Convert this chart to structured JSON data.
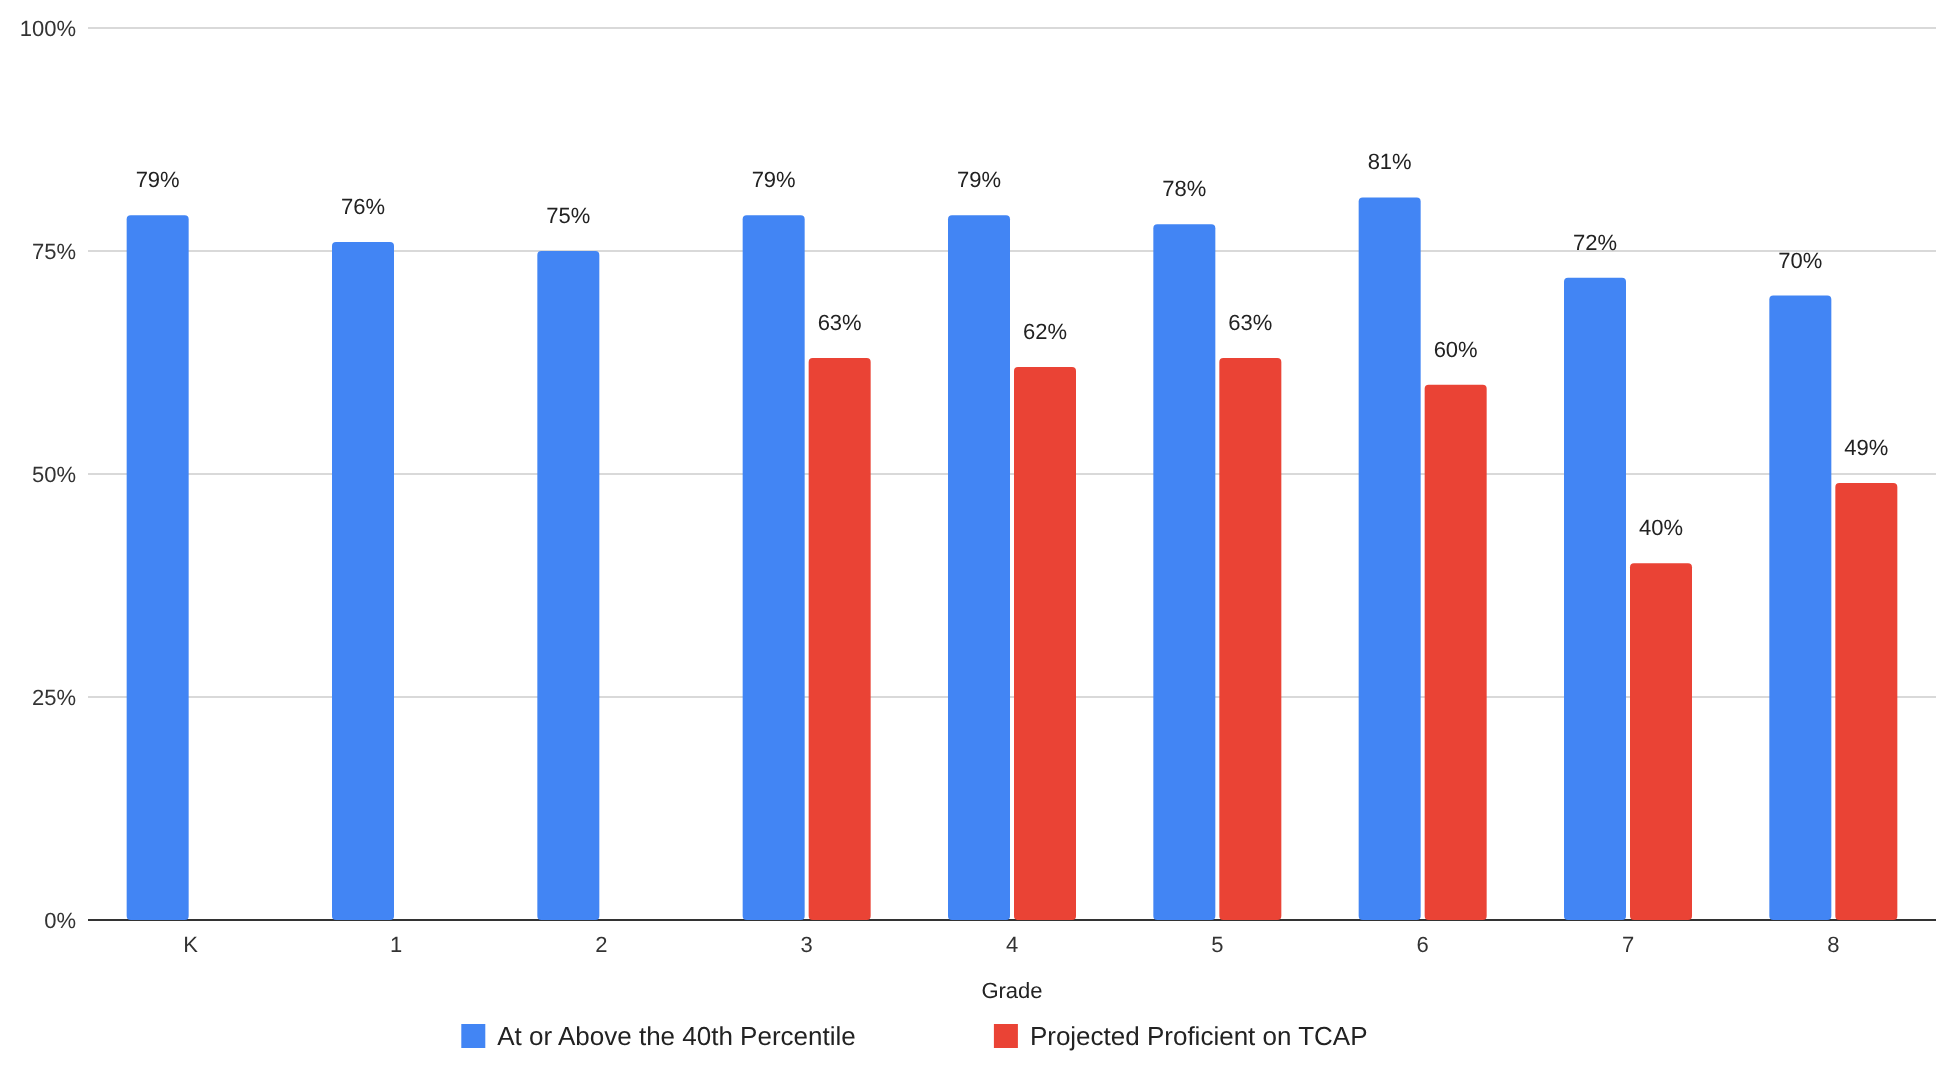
{
  "chart_data": {
    "type": "bar",
    "xlabel": "Grade",
    "categories": [
      "K",
      "1",
      "2",
      "3",
      "4",
      "5",
      "6",
      "7",
      "8"
    ],
    "series": [
      {
        "name": "At or Above the 40th Percentile",
        "color": "#4285f4",
        "values": [
          79,
          76,
          75,
          79,
          79,
          78,
          81,
          72,
          70
        ],
        "value_labels": [
          "79%",
          "76%",
          "75%",
          "79%",
          "79%",
          "78%",
          "81%",
          "72%",
          "70%"
        ]
      },
      {
        "name": "Projected Proficient on TCAP",
        "color": "#ea4335",
        "values": [
          null,
          null,
          null,
          63,
          62,
          63,
          60,
          40,
          49
        ],
        "value_labels": [
          null,
          null,
          null,
          "63%",
          "62%",
          "63%",
          "60%",
          "40%",
          "49%"
        ]
      }
    ],
    "ylim": [
      0,
      100
    ],
    "yticks": [
      {
        "value": 0,
        "label": "0%"
      },
      {
        "value": 25,
        "label": "25%"
      },
      {
        "value": 50,
        "label": "50%"
      },
      {
        "value": 75,
        "label": "75%"
      },
      {
        "value": 100,
        "label": "100%"
      }
    ],
    "grid": "y",
    "legend": "bottom"
  }
}
